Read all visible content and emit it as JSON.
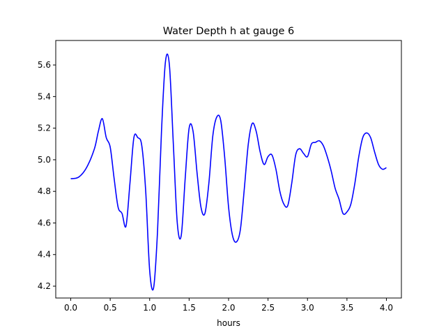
{
  "chart_data": {
    "type": "line",
    "title": "Water Depth h at gauge 6",
    "xlabel": "hours",
    "ylabel": "",
    "xlim": [
      -0.19,
      4.19
    ],
    "ylim": [
      4.125,
      5.755
    ],
    "xticks": [
      0.0,
      0.5,
      1.0,
      1.5,
      2.0,
      2.5,
      3.0,
      3.5,
      4.0
    ],
    "xtick_labels": [
      "0.0",
      "0.5",
      "1.0",
      "1.5",
      "2.0",
      "2.5",
      "3.0",
      "3.5",
      "4.0"
    ],
    "yticks": [
      4.2,
      4.4,
      4.6,
      4.8,
      5.0,
      5.2,
      5.4,
      5.6
    ],
    "ytick_labels": [
      "4.2",
      "4.4",
      "4.6",
      "4.8",
      "5.0",
      "5.2",
      "5.4",
      "5.6"
    ],
    "grid": false,
    "series": [
      {
        "color": "#0000ff",
        "x": [
          0.0,
          0.1,
          0.2,
          0.3,
          0.35,
          0.4,
          0.45,
          0.5,
          0.55,
          0.6,
          0.65,
          0.7,
          0.75,
          0.8,
          0.85,
          0.9,
          0.95,
          1.0,
          1.05,
          1.1,
          1.15,
          1.2,
          1.25,
          1.3,
          1.35,
          1.4,
          1.45,
          1.5,
          1.55,
          1.6,
          1.65,
          1.7,
          1.75,
          1.8,
          1.85,
          1.9,
          1.95,
          2.0,
          2.05,
          2.1,
          2.15,
          2.2,
          2.25,
          2.3,
          2.35,
          2.4,
          2.45,
          2.5,
          2.55,
          2.6,
          2.65,
          2.7,
          2.75,
          2.8,
          2.85,
          2.9,
          2.95,
          3.0,
          3.05,
          3.1,
          3.15,
          3.2,
          3.25,
          3.3,
          3.35,
          3.4,
          3.45,
          3.5,
          3.55,
          3.6,
          3.65,
          3.7,
          3.75,
          3.8,
          3.85,
          3.9,
          3.95,
          4.0
        ],
        "y": [
          4.88,
          4.89,
          4.95,
          5.07,
          5.18,
          5.26,
          5.14,
          5.08,
          4.88,
          4.7,
          4.66,
          4.58,
          4.85,
          5.14,
          5.14,
          5.09,
          4.8,
          4.3,
          4.19,
          4.55,
          5.18,
          5.62,
          5.6,
          5.1,
          4.6,
          4.52,
          4.88,
          5.2,
          5.18,
          4.92,
          4.7,
          4.66,
          4.85,
          5.15,
          5.27,
          5.25,
          5.02,
          4.7,
          4.52,
          4.48,
          4.56,
          4.82,
          5.1,
          5.23,
          5.18,
          5.05,
          4.97,
          5.02,
          5.03,
          4.94,
          4.8,
          4.72,
          4.71,
          4.85,
          5.03,
          5.07,
          5.04,
          5.02,
          5.1,
          5.11,
          5.12,
          5.09,
          5.02,
          4.93,
          4.82,
          4.75,
          4.66,
          4.67,
          4.72,
          4.85,
          5.02,
          5.14,
          5.17,
          5.14,
          5.05,
          4.97,
          4.94,
          4.95
        ]
      }
    ]
  }
}
